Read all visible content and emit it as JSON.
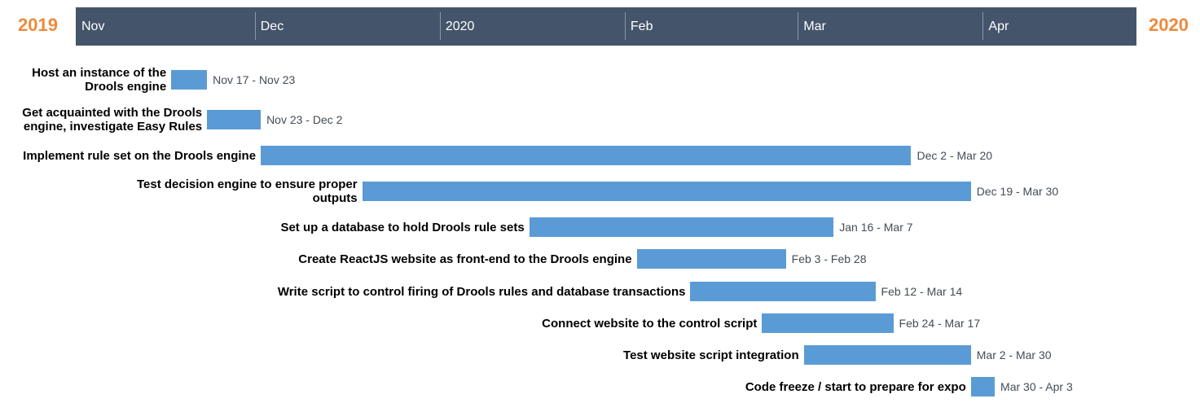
{
  "header": {
    "year_left": "2019",
    "year_right": "2020",
    "colors": {
      "year": "#ee8a3a",
      "axis_bar": "#44546a",
      "task_bar": "#5b9bd5"
    }
  },
  "chart_data": {
    "type": "gantt",
    "axis": {
      "range": [
        "2019-11-01",
        "2020-04-30"
      ],
      "ticks": [
        {
          "label": "Nov",
          "date": "2019-11-01"
        },
        {
          "label": "Dec",
          "date": "2019-12-01"
        },
        {
          "label": "2020",
          "date": "2020-01-01"
        },
        {
          "label": "Feb",
          "date": "2020-02-01"
        },
        {
          "label": "Mar",
          "date": "2020-03-01"
        },
        {
          "label": "Apr",
          "date": "2020-04-01"
        }
      ]
    },
    "tasks": [
      {
        "label": "Host an instance of the Drools engine",
        "start": "2019-11-17",
        "end": "2019-11-23",
        "dates": "Nov 17 - Nov 23"
      },
      {
        "label": "Get acquainted with the Drools engine, investigate Easy Rules",
        "start": "2019-11-23",
        "end": "2019-12-02",
        "dates": "Nov 23 - Dec 2"
      },
      {
        "label": "Implement rule set on the Drools engine",
        "start": "2019-12-02",
        "end": "2020-03-20",
        "dates": "Dec 2 - Mar 20"
      },
      {
        "label": "Test decision engine to ensure proper outputs",
        "start": "2019-12-19",
        "end": "2020-03-30",
        "dates": "Dec 19 - Mar 30"
      },
      {
        "label": "Set up a database to hold Drools rule sets",
        "start": "2020-01-16",
        "end": "2020-03-07",
        "dates": "Jan 16 - Mar 7"
      },
      {
        "label": "Create ReactJS website as front-end to the Drools engine",
        "start": "2020-02-03",
        "end": "2020-02-28",
        "dates": "Feb 3 - Feb 28"
      },
      {
        "label": "Write script to control firing of Drools rules and database transactions",
        "start": "2020-02-12",
        "end": "2020-03-14",
        "dates": "Feb 12 - Mar 14"
      },
      {
        "label": "Connect website to the control script",
        "start": "2020-02-24",
        "end": "2020-03-17",
        "dates": "Feb 24 - Mar 17"
      },
      {
        "label": "Test website script integration",
        "start": "2020-03-02",
        "end": "2020-03-30",
        "dates": "Mar 2 - Mar 30"
      },
      {
        "label": "Code freeze / start to prepare for expo",
        "start": "2020-03-30",
        "end": "2020-04-03",
        "dates": "Mar 30 - Apr 3"
      }
    ]
  }
}
